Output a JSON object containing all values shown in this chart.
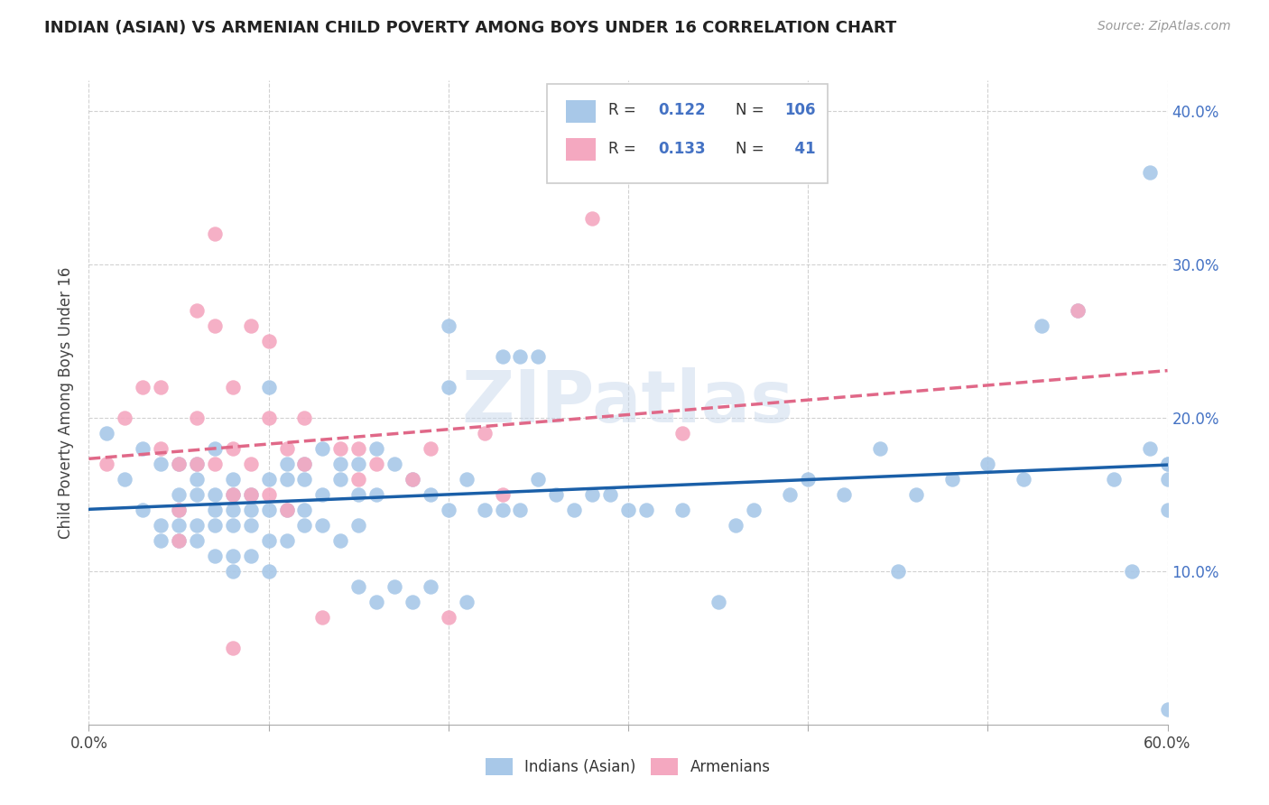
{
  "title": "INDIAN (ASIAN) VS ARMENIAN CHILD POVERTY AMONG BOYS UNDER 16 CORRELATION CHART",
  "source": "Source: ZipAtlas.com",
  "ylabel": "Child Poverty Among Boys Under 16",
  "xlim": [
    0.0,
    0.6
  ],
  "ylim": [
    0.0,
    0.42
  ],
  "xticks": [
    0.0,
    0.1,
    0.2,
    0.3,
    0.4,
    0.5,
    0.6
  ],
  "xtick_labels": [
    "0.0%",
    "",
    "",
    "",
    "",
    "",
    "60.0%"
  ],
  "yticks": [
    0.1,
    0.2,
    0.3,
    0.4
  ],
  "ytick_labels": [
    "10.0%",
    "20.0%",
    "30.0%",
    "40.0%"
  ],
  "indian_R": 0.122,
  "indian_N": 106,
  "armenian_R": 0.133,
  "armenian_N": 41,
  "indian_color": "#a8c8e8",
  "armenian_color": "#f4a8c0",
  "indian_line_color": "#1a5fa8",
  "armenian_line_color": "#e06888",
  "watermark": "ZIPatlas",
  "indian_scatter_x": [
    0.01,
    0.02,
    0.03,
    0.03,
    0.04,
    0.04,
    0.04,
    0.05,
    0.05,
    0.05,
    0.05,
    0.05,
    0.06,
    0.06,
    0.06,
    0.06,
    0.06,
    0.07,
    0.07,
    0.07,
    0.07,
    0.07,
    0.08,
    0.08,
    0.08,
    0.08,
    0.08,
    0.08,
    0.09,
    0.09,
    0.09,
    0.09,
    0.1,
    0.1,
    0.1,
    0.1,
    0.1,
    0.11,
    0.11,
    0.11,
    0.11,
    0.12,
    0.12,
    0.12,
    0.12,
    0.13,
    0.13,
    0.13,
    0.14,
    0.14,
    0.14,
    0.15,
    0.15,
    0.15,
    0.15,
    0.16,
    0.16,
    0.16,
    0.17,
    0.17,
    0.18,
    0.18,
    0.19,
    0.19,
    0.2,
    0.2,
    0.2,
    0.21,
    0.21,
    0.22,
    0.23,
    0.23,
    0.24,
    0.24,
    0.25,
    0.25,
    0.26,
    0.27,
    0.28,
    0.29,
    0.3,
    0.31,
    0.33,
    0.35,
    0.36,
    0.37,
    0.39,
    0.4,
    0.42,
    0.44,
    0.45,
    0.46,
    0.48,
    0.5,
    0.52,
    0.53,
    0.55,
    0.57,
    0.58,
    0.59,
    0.59,
    0.6,
    0.6,
    0.6,
    0.6,
    0.6
  ],
  "indian_scatter_y": [
    0.19,
    0.16,
    0.18,
    0.14,
    0.17,
    0.13,
    0.12,
    0.17,
    0.15,
    0.14,
    0.13,
    0.12,
    0.17,
    0.16,
    0.15,
    0.13,
    0.12,
    0.18,
    0.15,
    0.14,
    0.13,
    0.11,
    0.16,
    0.15,
    0.14,
    0.13,
    0.11,
    0.1,
    0.15,
    0.14,
    0.13,
    0.11,
    0.22,
    0.16,
    0.14,
    0.12,
    0.1,
    0.17,
    0.16,
    0.14,
    0.12,
    0.17,
    0.16,
    0.14,
    0.13,
    0.18,
    0.15,
    0.13,
    0.17,
    0.16,
    0.12,
    0.17,
    0.15,
    0.13,
    0.09,
    0.18,
    0.15,
    0.08,
    0.17,
    0.09,
    0.16,
    0.08,
    0.15,
    0.09,
    0.26,
    0.22,
    0.14,
    0.16,
    0.08,
    0.14,
    0.24,
    0.14,
    0.24,
    0.14,
    0.24,
    0.16,
    0.15,
    0.14,
    0.15,
    0.15,
    0.14,
    0.14,
    0.14,
    0.08,
    0.13,
    0.14,
    0.15,
    0.16,
    0.15,
    0.18,
    0.1,
    0.15,
    0.16,
    0.17,
    0.16,
    0.26,
    0.27,
    0.16,
    0.1,
    0.18,
    0.36,
    0.16,
    0.17,
    0.14,
    0.17,
    0.01
  ],
  "armenian_scatter_x": [
    0.01,
    0.02,
    0.03,
    0.04,
    0.04,
    0.05,
    0.05,
    0.05,
    0.06,
    0.06,
    0.06,
    0.07,
    0.07,
    0.07,
    0.08,
    0.08,
    0.08,
    0.08,
    0.09,
    0.09,
    0.09,
    0.1,
    0.1,
    0.1,
    0.11,
    0.11,
    0.12,
    0.12,
    0.13,
    0.14,
    0.15,
    0.15,
    0.16,
    0.18,
    0.19,
    0.2,
    0.22,
    0.23,
    0.28,
    0.33,
    0.55
  ],
  "armenian_scatter_y": [
    0.17,
    0.2,
    0.22,
    0.22,
    0.18,
    0.17,
    0.14,
    0.12,
    0.27,
    0.2,
    0.17,
    0.32,
    0.26,
    0.17,
    0.22,
    0.18,
    0.15,
    0.05,
    0.26,
    0.17,
    0.15,
    0.25,
    0.2,
    0.15,
    0.18,
    0.14,
    0.2,
    0.17,
    0.07,
    0.18,
    0.18,
    0.16,
    0.17,
    0.16,
    0.18,
    0.07,
    0.19,
    0.15,
    0.33,
    0.19,
    0.27
  ]
}
